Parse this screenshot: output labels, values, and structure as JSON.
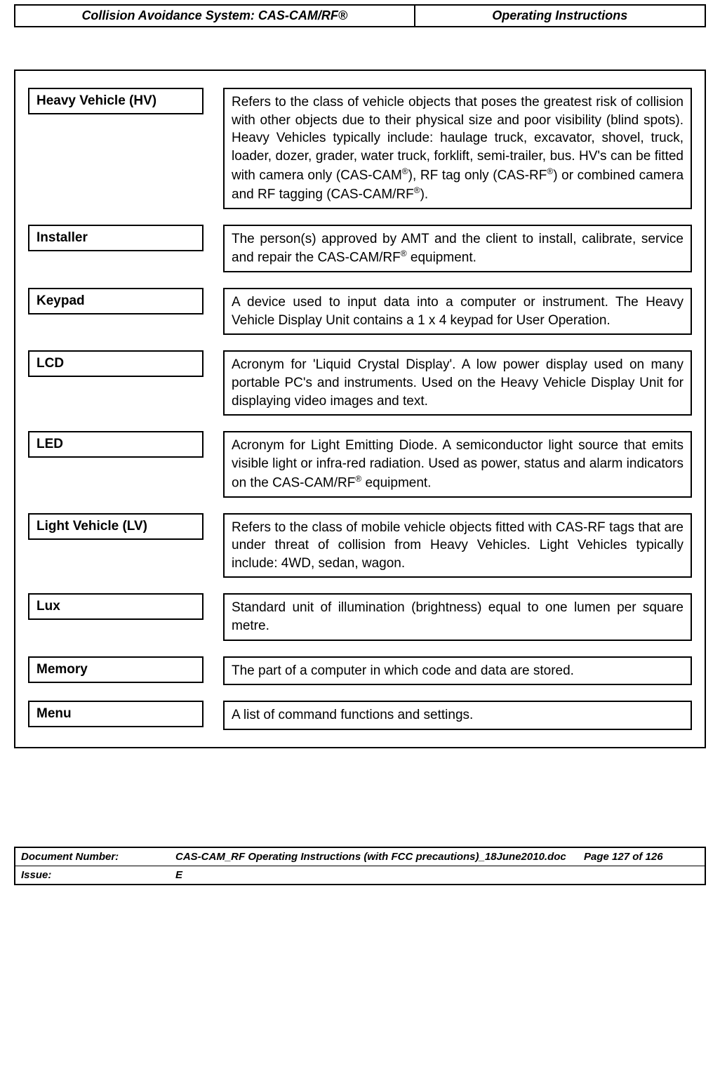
{
  "header": {
    "left": "Collision Avoidance System: CAS-CAM/RF®",
    "right": "Operating Instructions"
  },
  "definitions": [
    {
      "term": "Heavy Vehicle (HV)",
      "desc_html": "Refers to the class of vehicle objects that poses the greatest risk of collision with other objects due to their physical size and poor visibility (blind spots). Heavy Vehicles typically include: haulage truck, excavator, shovel, truck, loader, dozer, grader, water truck, forklift, semi-trailer, bus. HV's can be fitted with camera only (CAS-CAM<sup>®</sup>), RF tag only (CAS-RF<sup>®</sup>) or combined camera and RF tagging (CAS-CAM/RF<sup>®</sup>)."
    },
    {
      "term": "Installer",
      "desc_html": "The person(s) approved by AMT and the client to install, calibrate, service and repair the CAS-CAM/RF<sup>®</sup> equipment."
    },
    {
      "term": "Keypad",
      "desc_html": "A device used to input data into a computer or instrument. The Heavy Vehicle Display Unit contains a 1 x 4 keypad for User Operation."
    },
    {
      "term": "LCD",
      "desc_html": "Acronym for 'Liquid Crystal Display'. A low power display used on many portable PC's and instruments. Used on the Heavy Vehicle Display Unit for displaying video images and text."
    },
    {
      "term": "LED",
      "desc_html": "Acronym for Light Emitting Diode. A semiconductor light source that emits visible light or infra-red radiation. Used as power, status and alarm indicators on the CAS-CAM/RF<sup>®</sup> equipment."
    },
    {
      "term": "Light Vehicle (LV)",
      "desc_html": "Refers to the class of mobile vehicle objects fitted with CAS-RF tags that are under threat of collision from Heavy Vehicles. Light Vehicles typically include: 4WD, sedan, wagon."
    },
    {
      "term": "Lux",
      "desc_html": "Standard unit of illumination (brightness) equal to one lumen per square metre."
    },
    {
      "term": "Memory",
      "desc_html": "The part of a computer in which code and data are stored."
    },
    {
      "term": "Menu",
      "desc_html": "A list of command functions and settings."
    }
  ],
  "footer": {
    "doc_number_label": "Document Number:",
    "doc_number_value": "CAS-CAM_RF Operating Instructions (with FCC precautions)_18June2010.doc",
    "page_info": "Page 127 of  126",
    "issue_label": "Issue:",
    "issue_value": "E"
  }
}
